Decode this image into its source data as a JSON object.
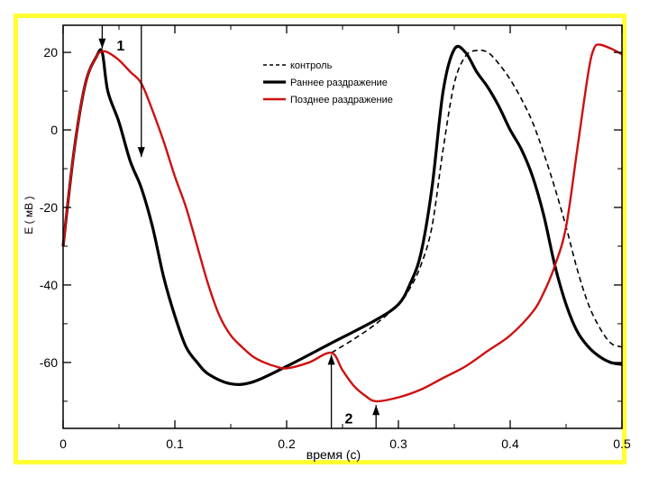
{
  "chart_data": {
    "type": "line",
    "xlabel": "время (с)",
    "ylabel": "E ( мВ )",
    "xlim": [
      0,
      0.5
    ],
    "ylim": [
      -77,
      27
    ],
    "xticks": [
      0,
      0.1,
      0.2,
      0.3,
      0.4,
      0.5
    ],
    "xtick_labels": [
      "0",
      "0.1",
      "0.2",
      "0.3",
      "0.4",
      "0.5"
    ],
    "yticks": [
      20,
      0,
      -20,
      -40,
      -60
    ],
    "ytick_labels": [
      "20",
      "0",
      "-20",
      "-40",
      "-60"
    ],
    "grid": false,
    "legend_position": "top-center",
    "series": [
      {
        "name": "контроль",
        "style": "dashed",
        "color": "#000000",
        "x": [
          0.24,
          0.26,
          0.28,
          0.3,
          0.31,
          0.32,
          0.33,
          0.34,
          0.35,
          0.36,
          0.37,
          0.38,
          0.39,
          0.4,
          0.41,
          0.42,
          0.43,
          0.44,
          0.45,
          0.46,
          0.47,
          0.48,
          0.49,
          0.5
        ],
        "y": [
          -57.5,
          -54,
          -50,
          -45,
          -41,
          -35,
          -25,
          -5,
          12,
          19,
          20.5,
          20,
          17,
          13,
          8,
          2,
          -6,
          -15,
          -25,
          -36,
          -45,
          -51,
          -55,
          -56
        ]
      },
      {
        "name": "Раннее раздражение",
        "style": "solid-thick",
        "color": "#000000",
        "x": [
          0.0,
          0.01,
          0.02,
          0.03,
          0.035,
          0.04,
          0.05,
          0.06,
          0.07,
          0.08,
          0.09,
          0.1,
          0.11,
          0.12,
          0.13,
          0.15,
          0.17,
          0.2,
          0.24,
          0.28,
          0.3,
          0.31,
          0.32,
          0.33,
          0.34,
          0.35,
          0.36,
          0.37,
          0.38,
          0.39,
          0.4,
          0.41,
          0.42,
          0.43,
          0.44,
          0.45,
          0.46,
          0.47,
          0.48,
          0.49,
          0.5
        ],
        "y": [
          -30,
          -5,
          12,
          19,
          20,
          10,
          2,
          -8,
          -15,
          -25,
          -38,
          -48,
          -56,
          -60,
          -63,
          -65.5,
          -65,
          -61,
          -55,
          -49,
          -45,
          -40,
          -32,
          -15,
          10,
          20.8,
          20,
          15,
          11,
          6,
          0,
          -5,
          -12,
          -22,
          -35,
          -45,
          -52,
          -56,
          -58.5,
          -60,
          -60.5
        ]
      },
      {
        "name": "Позднее раздражение",
        "style": "solid",
        "color": "#cc1111",
        "x": [
          0.0,
          0.01,
          0.02,
          0.03,
          0.035,
          0.04,
          0.05,
          0.06,
          0.07,
          0.08,
          0.09,
          0.1,
          0.11,
          0.12,
          0.13,
          0.14,
          0.15,
          0.16,
          0.17,
          0.18,
          0.19,
          0.2,
          0.22,
          0.24,
          0.25,
          0.26,
          0.27,
          0.28,
          0.3,
          0.32,
          0.34,
          0.36,
          0.38,
          0.4,
          0.42,
          0.43,
          0.44,
          0.45,
          0.46,
          0.47,
          0.475,
          0.48,
          0.49,
          0.5
        ],
        "y": [
          -30,
          -5,
          12,
          19,
          20.2,
          20,
          18,
          15,
          12,
          5,
          -3,
          -12,
          -20,
          -30,
          -40,
          -48,
          -53,
          -56,
          -58.5,
          -60,
          -61,
          -61.5,
          -60,
          -57.5,
          -62,
          -66,
          -68.5,
          -70,
          -69,
          -67,
          -64,
          -61,
          -57,
          -53,
          -47,
          -42,
          -35,
          -25,
          -5,
          15,
          21,
          22,
          21,
          19.5
        ]
      }
    ],
    "annotations": [
      {
        "label": "1",
        "x": 0.035,
        "y": 21
      },
      {
        "label": "2",
        "x": 0.244,
        "y": -75
      }
    ],
    "arrows": [
      {
        "x": 0.035,
        "y_from": 27,
        "y_to": 21,
        "dir": "down"
      },
      {
        "x": 0.07,
        "y_from": 27,
        "y_to": -7,
        "dir": "down"
      },
      {
        "x": 0.24,
        "y_from": -77,
        "y_to": -58,
        "dir": "up"
      },
      {
        "x": 0.28,
        "y_from": -77,
        "y_to": -71,
        "dir": "up"
      }
    ]
  }
}
